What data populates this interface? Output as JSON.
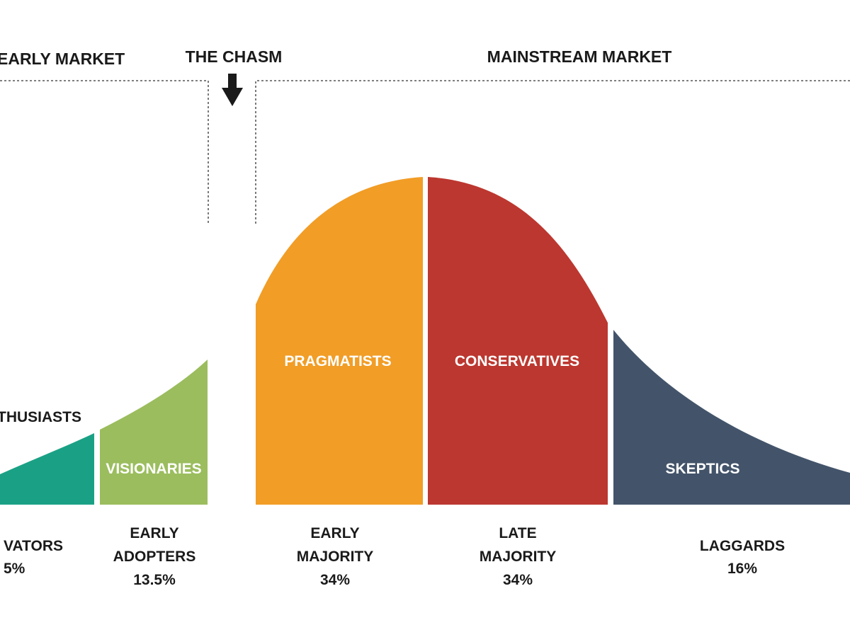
{
  "top": {
    "early_market": "EARLY MARKET",
    "the_chasm": "THE CHASM",
    "mainstream_market": "MAINSTREAM MARKET"
  },
  "segments": [
    {
      "key": "innovators",
      "curve_label": "THUSIASTS",
      "line1": "",
      "line2": "VATORS",
      "percent": "5%",
      "color": "#1aa185"
    },
    {
      "key": "early_adopters",
      "curve_label": "VISIONARIES",
      "line1": "EARLY",
      "line2": "ADOPTERS",
      "percent": "13.5%",
      "color": "#9bbd5e"
    },
    {
      "key": "early_majority",
      "curve_label": "PRAGMATISTS",
      "line1": "EARLY",
      "line2": "MAJORITY",
      "percent": "34%",
      "color": "#f19d26"
    },
    {
      "key": "late_majority",
      "curve_label": "CONSERVATIVES",
      "line1": "LATE",
      "line2": "MAJORITY",
      "percent": "34%",
      "color": "#bc372f"
    },
    {
      "key": "laggards",
      "curve_label": "SKEPTICS",
      "line1": "",
      "line2": "LAGGARDS",
      "percent": "16%",
      "color": "#43546a"
    }
  ],
  "icons": {
    "chasm_arrow": "arrow-down-icon"
  }
}
